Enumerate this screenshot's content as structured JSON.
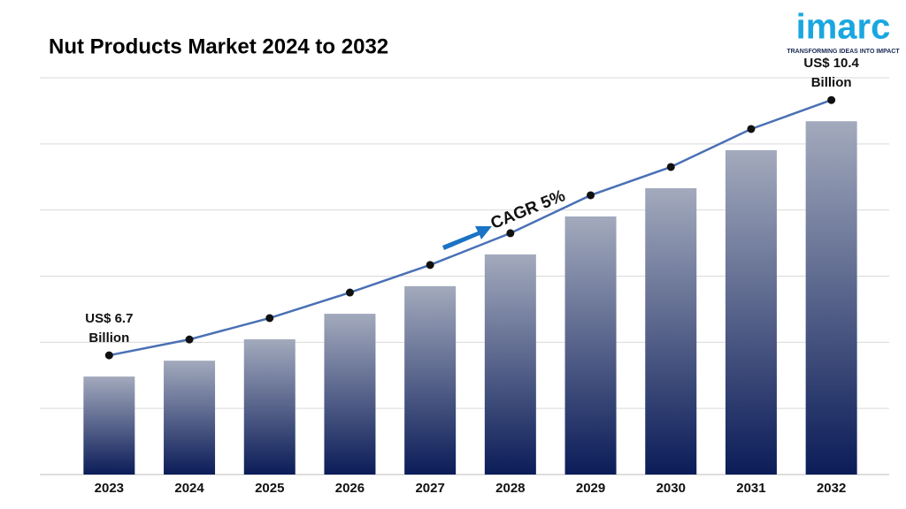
{
  "chart_data": {
    "type": "bar",
    "title": "Nut Products Market 2024 to 2032",
    "categories": [
      "2023",
      "2024",
      "2025",
      "2026",
      "2027",
      "2028",
      "2029",
      "2030",
      "2031",
      "2032"
    ],
    "values": [
      6.7,
      6.93,
      7.24,
      7.61,
      8.01,
      8.47,
      9.02,
      9.43,
      9.98,
      10.4
    ],
    "value_labels": [
      "US$ 6.7 Billion",
      null,
      null,
      null,
      null,
      null,
      null,
      null,
      null,
      "US$ 10.4 Billion"
    ],
    "color": "#0b1c58",
    "line_color": "#4a70b5",
    "ylim": [
      5.28,
      11.03
    ],
    "grid": true,
    "annotation": "CAGR 5%"
  },
  "logo": {
    "name": "imarc",
    "tagline": "TRANSFORMING IDEAS INTO IMPACT"
  }
}
